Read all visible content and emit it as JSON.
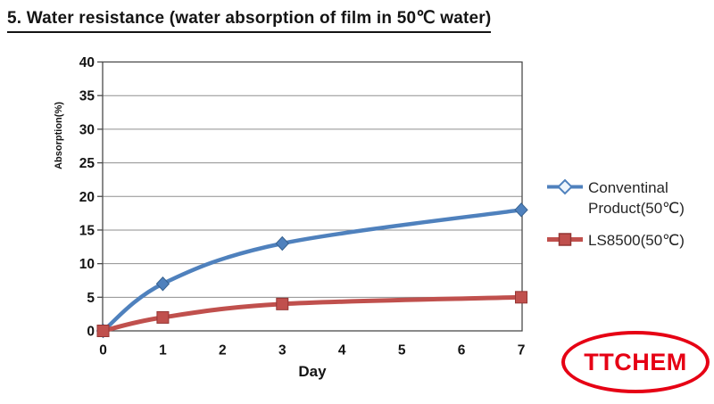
{
  "page": {
    "title": "5. Water resistance (water absorption of film in 50℃ water)"
  },
  "chart_data": {
    "type": "line",
    "x": [
      0,
      1,
      3,
      7
    ],
    "series": [
      {
        "name": "Conventinal Product(50℃)",
        "label_lines": [
          "Conventinal",
          "Product(50℃)"
        ],
        "values": [
          0,
          7,
          13,
          18
        ],
        "color": "#4f81bd",
        "marker": "diamond",
        "marker_edge": "#36618f"
      },
      {
        "name": "LS8500(50℃)",
        "label_lines": [
          "LS8500(50℃)"
        ],
        "values": [
          0,
          2,
          4,
          5
        ],
        "color": "#c0504d",
        "marker": "square",
        "marker_edge": "#943634"
      }
    ],
    "xlabel": "Day",
    "ylabel": "Absorption(%)",
    "xlim": [
      0,
      7
    ],
    "ylim": [
      0,
      40
    ],
    "x_ticks": [
      0,
      1,
      2,
      3,
      4,
      5,
      6,
      7
    ],
    "y_ticks": [
      0,
      5,
      10,
      15,
      20,
      25,
      30,
      35,
      40
    ],
    "grid": "horizontal-only",
    "smoothed": true,
    "legend_position": "right",
    "axis_color": "#4a4a4a",
    "grid_color": "#8f8f8f",
    "tick_text_color": "#141414"
  },
  "logo": {
    "text": "TTCHEM",
    "color": "#e60014"
  }
}
